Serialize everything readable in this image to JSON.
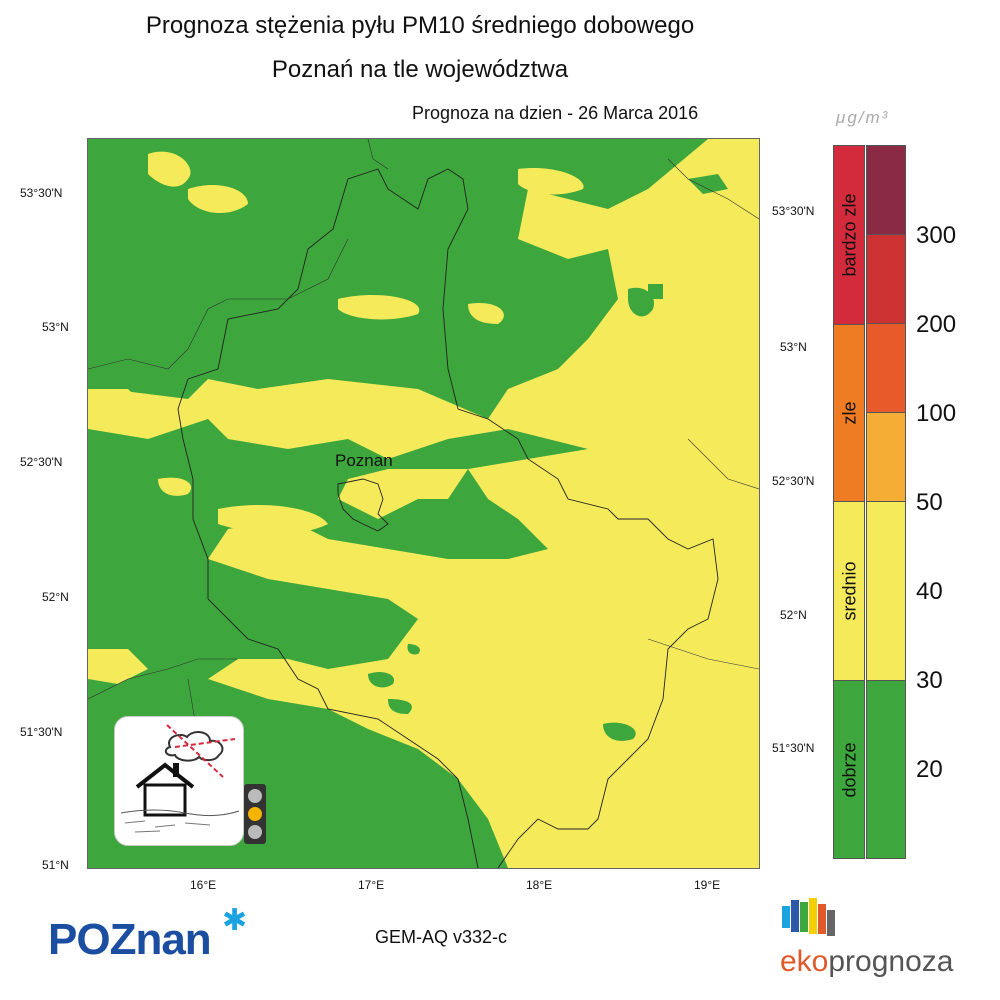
{
  "title": {
    "line1": "Prognoza stężenia pyłu PM10 średniego dobowego",
    "line2": "Poznań na tle województwa"
  },
  "forecast_date": "Prognoza na dzien -  26 Marca 2016",
  "map": {
    "city_label": "Poznan",
    "lat_ticks_left": [
      "53°30'N",
      "53°N",
      "52°30'N",
      "52°N",
      "51°30'N",
      "51°N"
    ],
    "lat_ticks_right": [
      "53°30'N",
      "53°N",
      "52°30'N",
      "52°N",
      "51°30'N"
    ],
    "lon_ticks": [
      "16°E",
      "17°E",
      "18°E",
      "19°E"
    ],
    "colors": {
      "good": "#3da63c",
      "average": "#f5ea5a",
      "bad": "#f08020",
      "very_bad": "#d42b3c"
    }
  },
  "legend": {
    "unit": "μg/m³",
    "categories": [
      {
        "label": "bardzo zle",
        "color": "#d42b3c"
      },
      {
        "label": "zle",
        "color": "#ef7b22"
      },
      {
        "label": "srednio",
        "color": "#f5ea5a"
      },
      {
        "label": "dobrze",
        "color": "#3da63c"
      }
    ],
    "sub_colors": [
      "#8a2a45",
      "#cc3232",
      "#e85a2a",
      "#f5ad35",
      "#f5ea5a",
      "#f5ea5a",
      "#3da63c",
      "#3da63c"
    ],
    "levels": [
      "300",
      "200",
      "100",
      "50",
      "40",
      "30",
      "20"
    ]
  },
  "footer": {
    "poznan_logo": "POZnan",
    "model": "GEM-AQ v332-c",
    "eko_prefix": "eko",
    "eko_suffix": "prognoza"
  }
}
